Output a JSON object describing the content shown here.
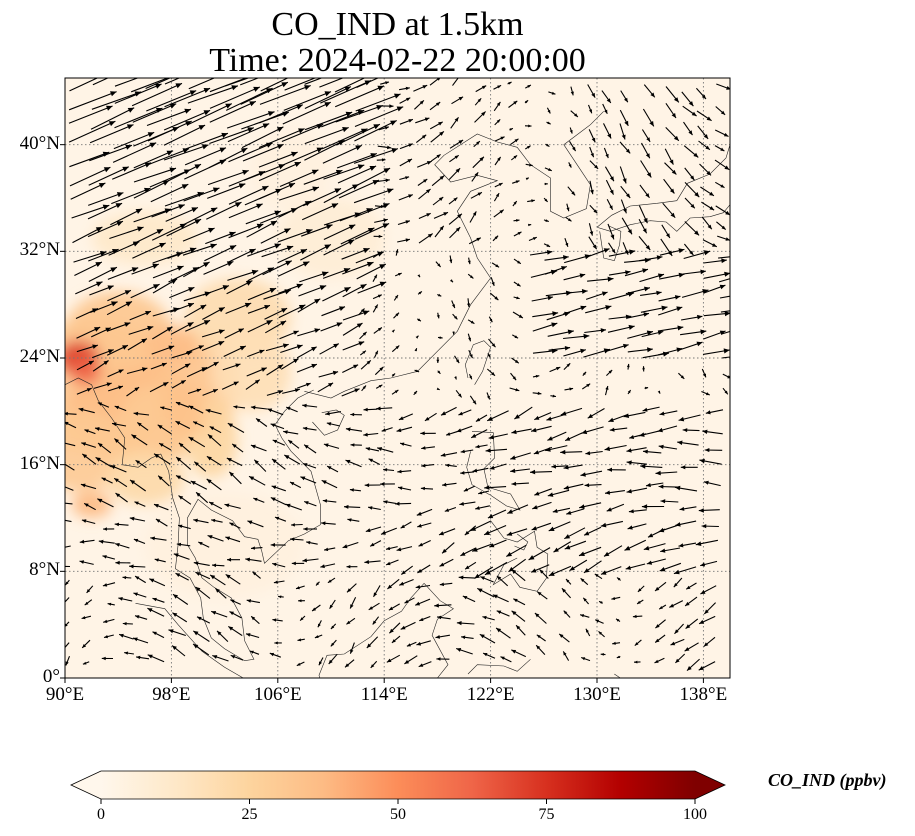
{
  "title": {
    "line1": "CO_IND at 1.5km",
    "line2": "Time: 2024-02-22 20:00:00"
  },
  "map": {
    "extent": {
      "lon": [
        90,
        140
      ],
      "lat": [
        0,
        45
      ]
    },
    "lon_ticks": [
      {
        "value": 90,
        "label": "90°E"
      },
      {
        "value": 98,
        "label": "98°E"
      },
      {
        "value": 106,
        "label": "106°E"
      },
      {
        "value": 114,
        "label": "114°E"
      },
      {
        "value": 122,
        "label": "122°E"
      },
      {
        "value": 130,
        "label": "130°E"
      },
      {
        "value": 138,
        "label": "138°E"
      }
    ],
    "lat_ticks": [
      {
        "value": 0,
        "label": "0°"
      },
      {
        "value": 8,
        "label": "8°N"
      },
      {
        "value": 16,
        "label": "16°N"
      },
      {
        "value": 24,
        "label": "24°N"
      },
      {
        "value": 32,
        "label": "32°N"
      },
      {
        "value": 40,
        "label": "40°N"
      }
    ],
    "gridlines": "dotted",
    "field": "CO_IND concentration (filled)",
    "overlay": "wind vectors (quiver)"
  },
  "colorbar": {
    "label": "CO_IND (ppbv)",
    "range": [
      0,
      100
    ],
    "ticks": [
      "0",
      "25",
      "50",
      "75",
      "100"
    ],
    "colormap": "OrRd",
    "colors": [
      "#fff7ec",
      "#fee8c8",
      "#fdd49e",
      "#fdbb84",
      "#fc8d59",
      "#ef6548",
      "#d7301f",
      "#b30000",
      "#7f0000"
    ],
    "extend": "both"
  }
}
